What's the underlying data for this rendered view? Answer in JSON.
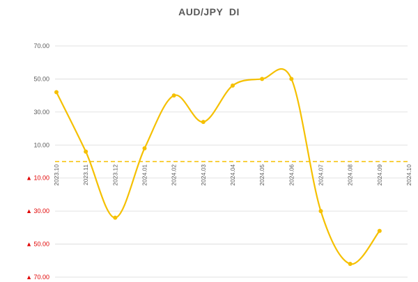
{
  "chart_data": {
    "type": "line",
    "title": "AUD/JPY  DI",
    "categories": [
      "2023.10",
      "2023.11",
      "2023.12",
      "2024.01",
      "2024.02",
      "2024.03",
      "2024.04",
      "2024.05",
      "2024.06",
      "2024.07",
      "2024.08",
      "2024.09",
      "2024.10"
    ],
    "series": [
      {
        "values": [
          42,
          6,
          -34,
          8,
          40,
          24,
          46,
          50,
          50,
          -30,
          -62,
          -42,
          null
        ]
      }
    ],
    "y_ticks": [
      {
        "value": 70,
        "label": "70.00",
        "negative": false
      },
      {
        "value": 50,
        "label": "50.00",
        "negative": false
      },
      {
        "value": 30,
        "label": "30.00",
        "negative": false
      },
      {
        "value": 10,
        "label": "10.00",
        "negative": false
      },
      {
        "value": -10,
        "label": "▲ 10.00",
        "negative": true
      },
      {
        "value": -30,
        "label": "▲ 30.00",
        "negative": true
      },
      {
        "value": -50,
        "label": "▲ 50.00",
        "negative": true
      },
      {
        "value": -70,
        "label": "▲ 70.00",
        "negative": true
      }
    ],
    "ylim": [
      -70,
      70
    ],
    "zero_line": {
      "value": 0,
      "style": "dashed"
    },
    "grid": true,
    "line_color": "#f5c000",
    "zero_line_color": "#f5c000",
    "negative_label_color": "#e00000",
    "curve": "smooth",
    "markers": true
  }
}
